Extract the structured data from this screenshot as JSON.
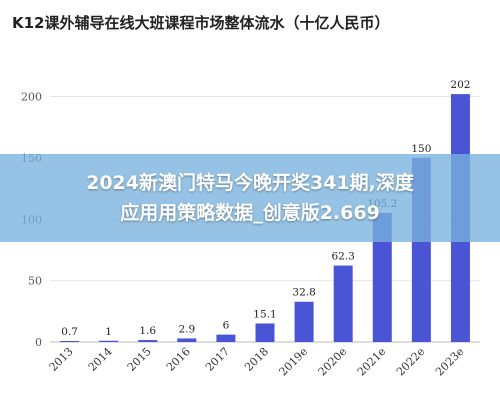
{
  "chart_data": {
    "type": "bar",
    "title": "K12课外辅导在线大班课程市场整体流水（十亿人民币）",
    "categories": [
      "2013",
      "2014",
      "2015",
      "2016",
      "2017",
      "2018",
      "2019e",
      "2020e",
      "2021e",
      "2022e",
      "2023e"
    ],
    "values": [
      0.7,
      1,
      1.6,
      2.9,
      6,
      15.1,
      32.8,
      62.3,
      105.2,
      150,
      202
    ],
    "data_labels": [
      "0.7",
      "1",
      "1.6",
      "2.9",
      "6",
      "15.1",
      "32.8",
      "62.3",
      "105.2",
      "150",
      "202"
    ],
    "y_ticks": [
      0,
      50,
      100,
      150,
      200
    ],
    "ylim": [
      0,
      220
    ],
    "grid": true,
    "bar_color": "#4a55d6"
  },
  "watermark": {
    "line1": "2024新澳门特马今晚开奖341期,深度",
    "line2": "应用用策略数据_创意版2.669"
  }
}
